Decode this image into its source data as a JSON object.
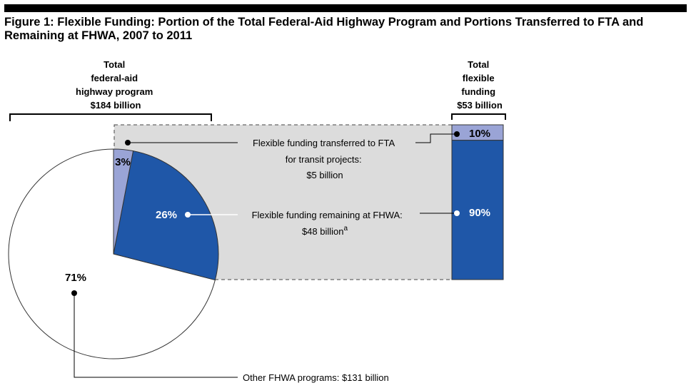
{
  "title": "Figure 1: Flexible Funding: Portion of the Total Federal-Aid Highway Program and Portions Transferred to FTA and Remaining at FHWA, 2007 to 2011",
  "colors": {
    "transferred": "#9aa4d6",
    "remaining": "#1f57a8",
    "other": "#ffffff",
    "connector_band": "#dcdcdc"
  },
  "chart_data": [
    {
      "type": "pie",
      "label": [
        "Total",
        "federal-aid",
        "highway program",
        "$184 billion"
      ],
      "slices": [
        {
          "name": "Flexible funding transferred to FTA",
          "percent": 3,
          "label": "3%"
        },
        {
          "name": "Flexible funding remaining at FHWA",
          "percent": 26,
          "label": "26%"
        },
        {
          "name": "Other FHWA programs",
          "percent": 71,
          "label": "71%"
        }
      ]
    },
    {
      "type": "bar",
      "stacked": true,
      "label": [
        "Total",
        "flexible",
        "funding",
        "$53 billion"
      ],
      "segments": [
        {
          "name": "Flexible funding transferred to FTA",
          "percent": 10,
          "label": "10%"
        },
        {
          "name": "Flexible funding remaining at FHWA",
          "percent": 90,
          "label": "90%"
        }
      ]
    }
  ],
  "annotations": {
    "transferred": [
      "Flexible funding transferred to FTA",
      "for transit projects:",
      "$5 billion"
    ],
    "remaining": [
      "Flexible funding remaining at FHWA:",
      "$48 billion"
    ],
    "remaining_superscript": "a",
    "other": "Other FHWA programs: $131 billion"
  }
}
